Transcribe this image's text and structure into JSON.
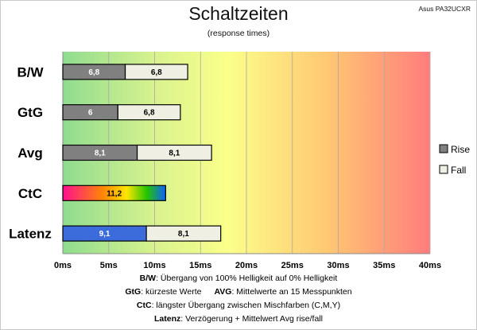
{
  "header": {
    "title": "Schaltzeiten",
    "subtitle": "(response times)",
    "model": "Asus PA32UCXR"
  },
  "chart_data": {
    "type": "bar",
    "orientation": "horizontal",
    "stacked": true,
    "categories": [
      "B/W",
      "GtG",
      "Avg",
      "CtC",
      "Latenz"
    ],
    "series": [
      {
        "name": "Rise",
        "values": [
          6.8,
          6,
          8.1,
          11.2,
          9.1
        ],
        "labels": [
          "6,8",
          "6",
          "8,1",
          "11,2",
          "9,1"
        ],
        "color": "#808080"
      },
      {
        "name": "Fall",
        "values": [
          6.8,
          6.8,
          8.1,
          null,
          8.1
        ],
        "labels": [
          "6,8",
          "6,8",
          "8,1",
          "",
          "8,1"
        ],
        "color": "#efefe3"
      }
    ],
    "special_colors": {
      "CtC": "rainbow-gradient",
      "Latenz": "#3c6bdc"
    },
    "x_ticks": [
      "0ms",
      "5ms",
      "10ms",
      "15ms",
      "20ms",
      "25ms",
      "30ms",
      "35ms",
      "40ms"
    ],
    "xlim": [
      0,
      40
    ],
    "background": "gradient green-yellow-red",
    "grid": true,
    "legend_position": "right"
  },
  "notes": [
    {
      "k1": "B/W",
      "t1": ":  Übergang von 100% Helligkeit auf 0% Helligkeit"
    },
    {
      "k1": "GtG",
      "t1": ": kürzeste  Werte",
      "k2": "AVG",
      "t2": ": Mittelwerte  an 15 Messpunkten"
    },
    {
      "k1": "CtC",
      "t1": ": längster Übergang  zwischen Mischfarben (C,M,Y)"
    },
    {
      "k1": "Latenz",
      "t1": ": Verzögerung  + Mittelwert  Avg rise/fall"
    }
  ]
}
